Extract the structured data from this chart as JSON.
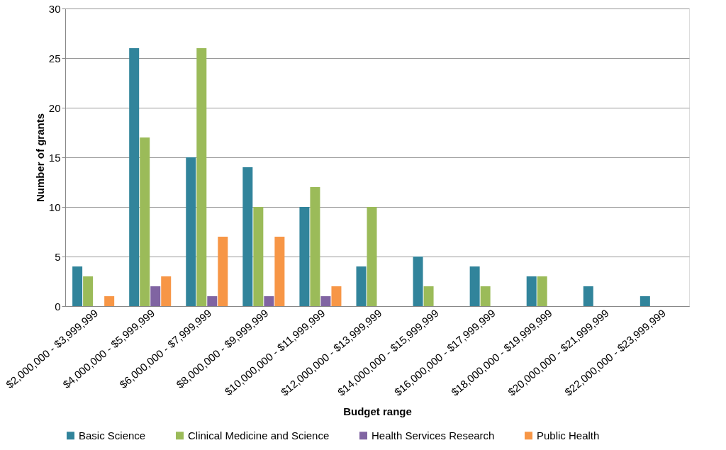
{
  "chart_data": {
    "type": "bar",
    "xlabel": "Budget range",
    "ylabel": "Number of grants",
    "categories": [
      "$2,000,000 - $3,999,999",
      "$4,000,000 - $5,999,999",
      "$6,000,000 - $7,999,999",
      "$8,000,000 - $9,999,999",
      "$10,000,000 - $11,999,999",
      "$12,000,000 - $13,999,999",
      "$14,000,000 - $15,999,999",
      "$16,000,000 - $17,999,999",
      "$18,000,000 - $19,999,999",
      "$20,000,000 - $21,999,999",
      "$22,000,000 - $23,999,999"
    ],
    "series": [
      {
        "name": "Basic Science",
        "color": "#31849b",
        "values": [
          4,
          26,
          15,
          14,
          10,
          4,
          5,
          4,
          3,
          2,
          1
        ]
      },
      {
        "name": "Clinical Medicine and Science",
        "color": "#9bbb59",
        "values": [
          3,
          17,
          26,
          10,
          12,
          10,
          2,
          2,
          3,
          null,
          null
        ]
      },
      {
        "name": "Health Services Research",
        "color": "#8064a2",
        "values": [
          null,
          2,
          1,
          1,
          1,
          null,
          null,
          null,
          null,
          null,
          null
        ]
      },
      {
        "name": "Public Health",
        "color": "#f79646",
        "values": [
          1,
          3,
          7,
          7,
          2,
          null,
          null,
          null,
          null,
          null,
          null
        ]
      }
    ],
    "ylim": [
      0,
      30
    ],
    "yticks": [
      0,
      5,
      10,
      15,
      20,
      25,
      30
    ],
    "grid": "y",
    "legend": "bottom"
  }
}
